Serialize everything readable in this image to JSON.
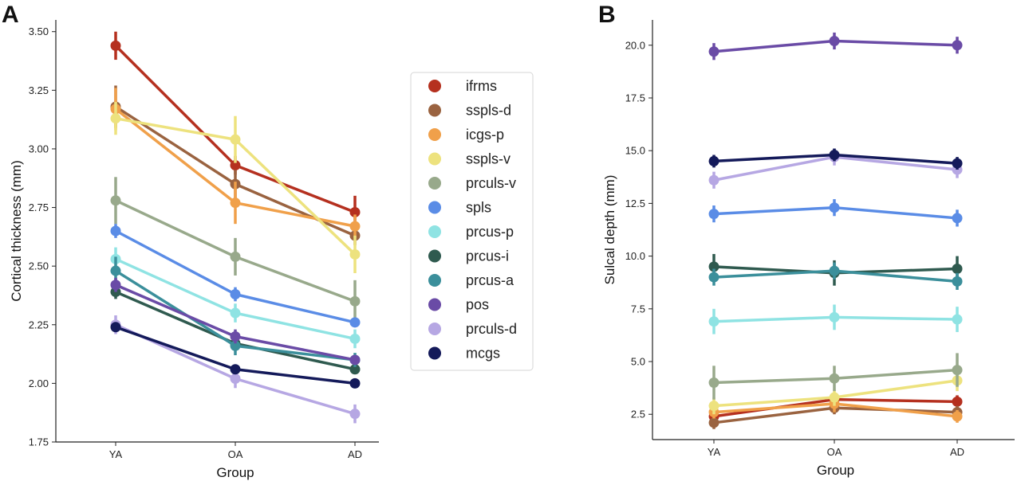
{
  "chart_data": [
    {
      "type": "line",
      "panel_label": "A",
      "xlabel": "Group",
      "ylabel": "Cortical thickness (mm)",
      "categories": [
        "YA",
        "OA",
        "AD"
      ],
      "ylim": [
        1.75,
        3.55
      ],
      "yticks": [
        "1.75",
        "2.00",
        "2.25",
        "2.50",
        "2.75",
        "3.00",
        "3.25",
        "3.50"
      ],
      "legend_position": "right",
      "series": [
        {
          "name": "ifrms",
          "color": "#b5301f",
          "values": [
            3.44,
            2.93,
            2.73
          ],
          "err": [
            0.06,
            0.04,
            0.07
          ]
        },
        {
          "name": "sspls-d",
          "color": "#9a6340",
          "values": [
            3.18,
            2.85,
            2.63
          ],
          "err": [
            0.09,
            0.06,
            0.04
          ]
        },
        {
          "name": "icgs-p",
          "color": "#f0a04a",
          "values": [
            3.17,
            2.77,
            2.67
          ],
          "err": [
            0.09,
            0.09,
            0.05
          ]
        },
        {
          "name": "sspls-v",
          "color": "#ede27e",
          "values": [
            3.13,
            3.04,
            2.55
          ],
          "err": [
            0.07,
            0.1,
            0.08
          ]
        },
        {
          "name": "prculs-v",
          "color": "#98a98b",
          "values": [
            2.78,
            2.54,
            2.35
          ],
          "err": [
            0.1,
            0.08,
            0.09
          ]
        },
        {
          "name": "spls",
          "color": "#5a8ce6",
          "values": [
            2.65,
            2.38,
            2.26
          ],
          "err": [
            0.03,
            0.03,
            0.02
          ]
        },
        {
          "name": "prcus-p",
          "color": "#8fe3e3",
          "values": [
            2.53,
            2.3,
            2.19
          ],
          "err": [
            0.05,
            0.04,
            0.04
          ]
        },
        {
          "name": "prcus-i",
          "color": "#2f5a4f",
          "values": [
            2.39,
            2.17,
            2.06
          ],
          "err": [
            0.03,
            0.03,
            0.02
          ]
        },
        {
          "name": "prcus-a",
          "color": "#3b8f9b",
          "values": [
            2.48,
            2.16,
            2.1
          ],
          "err": [
            0.06,
            0.04,
            0.03
          ]
        },
        {
          "name": "pos",
          "color": "#6a4ba6",
          "values": [
            2.42,
            2.2,
            2.1
          ],
          "err": [
            0.03,
            0.03,
            0.02
          ]
        },
        {
          "name": "prculs-d",
          "color": "#b6a7e3",
          "values": [
            2.25,
            2.02,
            1.87
          ],
          "err": [
            0.04,
            0.04,
            0.04
          ]
        },
        {
          "name": "mcgs",
          "color": "#141a5a",
          "values": [
            2.24,
            2.06,
            2.0
          ],
          "err": [
            0.02,
            0.02,
            0.02
          ]
        }
      ]
    },
    {
      "type": "line",
      "panel_label": "B",
      "xlabel": "Group",
      "ylabel": "Sulcal depth (mm)",
      "categories": [
        "YA",
        "OA",
        "AD"
      ],
      "ylim": [
        1.3,
        21.2
      ],
      "yticks": [
        "2.5",
        "5.0",
        "7.5",
        "10.0",
        "12.5",
        "15.0",
        "17.5",
        "20.0"
      ],
      "series": [
        {
          "name": "ifrms",
          "color": "#b5301f",
          "values": [
            2.4,
            3.2,
            3.1
          ],
          "err": [
            0.3,
            0.3,
            0.3
          ]
        },
        {
          "name": "sspls-d",
          "color": "#9a6340",
          "values": [
            2.1,
            2.8,
            2.6
          ],
          "err": [
            0.3,
            0.3,
            0.3
          ]
        },
        {
          "name": "icgs-p",
          "color": "#f0a04a",
          "values": [
            2.6,
            3.0,
            2.4
          ],
          "err": [
            0.3,
            0.4,
            0.3
          ]
        },
        {
          "name": "sspls-v",
          "color": "#ede27e",
          "values": [
            2.9,
            3.3,
            4.1
          ],
          "err": [
            0.4,
            0.4,
            0.5
          ]
        },
        {
          "name": "prculs-v",
          "color": "#98a98b",
          "values": [
            4.0,
            4.2,
            4.6
          ],
          "err": [
            0.8,
            0.6,
            0.8
          ]
        },
        {
          "name": "spls",
          "color": "#5a8ce6",
          "values": [
            12.0,
            12.3,
            11.8
          ],
          "err": [
            0.4,
            0.4,
            0.4
          ]
        },
        {
          "name": "prcus-p",
          "color": "#8fe3e3",
          "values": [
            6.9,
            7.1,
            7.0
          ],
          "err": [
            0.6,
            0.6,
            0.6
          ]
        },
        {
          "name": "prcus-i",
          "color": "#2f5a4f",
          "values": [
            9.5,
            9.2,
            9.4
          ],
          "err": [
            0.6,
            0.6,
            0.6
          ]
        },
        {
          "name": "prcus-a",
          "color": "#3b8f9b",
          "values": [
            9.0,
            9.3,
            8.8
          ],
          "err": [
            0.4,
            0.4,
            0.4
          ]
        },
        {
          "name": "pos",
          "color": "#6a4ba6",
          "values": [
            19.7,
            20.2,
            20.0
          ],
          "err": [
            0.4,
            0.4,
            0.4
          ]
        },
        {
          "name": "prculs-d",
          "color": "#b6a7e3",
          "values": [
            13.6,
            14.7,
            14.1
          ],
          "err": [
            0.4,
            0.4,
            0.4
          ]
        },
        {
          "name": "mcgs",
          "color": "#141a5a",
          "values": [
            14.5,
            14.8,
            14.4
          ],
          "err": [
            0.3,
            0.3,
            0.3
          ]
        }
      ]
    }
  ]
}
